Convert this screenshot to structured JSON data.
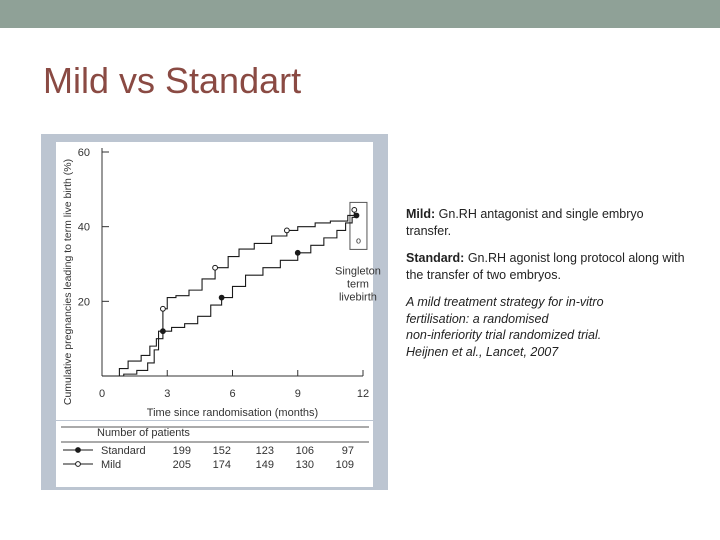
{
  "slide": {
    "title": "Mild vs Standart"
  },
  "caption": {
    "mild_label": "Mild:",
    "mild_text": " Gn.RH antagonist and single embryo transfer.",
    "standard_label": "Standard:",
    "standard_text": " Gn.RH agonist long protocol along with the transfer of two embryos.",
    "ref_lines": [
      "A mild treatment strategy for in-vitro",
      "fertilisation: a randomised",
      "non-inferiority trial randomized trial.",
      "Heijnen et al., Lancet, 2007"
    ]
  },
  "colors": {
    "topbar": "#8fa197",
    "title": "#8a4a43",
    "figure_bg": "#bcc5d1",
    "plot_bg": "#ffffff",
    "line": "#1a1a1a"
  },
  "chart_data": {
    "type": "line",
    "xlabel": "Time since randomisation   (months)",
    "ylabel": "Cumulative pregnancies leading to term live birth (%)",
    "xlim": [
      0,
      12
    ],
    "ylim": [
      0,
      60
    ],
    "x_ticks": [
      "0",
      "3",
      "6",
      "9",
      "12"
    ],
    "y_ticks": [
      "20",
      "40",
      "60"
    ],
    "grid": false,
    "annotation": [
      "Singleton",
      "term",
      "livebirth"
    ],
    "annotation_marker": "o",
    "series": [
      {
        "name": "Mild",
        "marker": "open-circle",
        "points": [
          [
            0,
            0
          ],
          [
            1.0,
            0.5
          ],
          [
            1.6,
            1.5
          ],
          [
            2.1,
            3.5
          ],
          [
            2.4,
            7
          ],
          [
            2.6,
            12
          ],
          [
            2.8,
            18
          ],
          [
            3.0,
            21
          ],
          [
            3.4,
            21.5
          ],
          [
            4.0,
            23
          ],
          [
            4.6,
            26
          ],
          [
            5.2,
            29
          ],
          [
            5.8,
            32
          ],
          [
            6.3,
            34
          ],
          [
            7.0,
            35.5
          ],
          [
            7.8,
            37.5
          ],
          [
            8.5,
            39
          ],
          [
            9.0,
            40
          ],
          [
            9.8,
            41
          ],
          [
            10.5,
            41.5
          ],
          [
            11.0,
            41.5
          ],
          [
            11.3,
            43
          ],
          [
            11.6,
            44.5
          ]
        ]
      },
      {
        "name": "Standard",
        "marker": "filled-circle",
        "points": [
          [
            0,
            0
          ],
          [
            0.8,
            2
          ],
          [
            1.2,
            4
          ],
          [
            1.8,
            5.5
          ],
          [
            2.2,
            8
          ],
          [
            2.5,
            10
          ],
          [
            2.8,
            12
          ],
          [
            3.2,
            13
          ],
          [
            3.8,
            14
          ],
          [
            4.4,
            16
          ],
          [
            5.0,
            19
          ],
          [
            5.5,
            21
          ],
          [
            6.0,
            24
          ],
          [
            6.6,
            27
          ],
          [
            7.4,
            29
          ],
          [
            8.2,
            31
          ],
          [
            9.0,
            33
          ],
          [
            9.6,
            35
          ],
          [
            10.2,
            37
          ],
          [
            10.8,
            39
          ],
          [
            11.2,
            41
          ],
          [
            11.5,
            42.5
          ],
          [
            11.7,
            43
          ]
        ]
      }
    ],
    "table": {
      "header": "Number of patients",
      "rows": [
        {
          "name": "Standard",
          "values": [
            "199",
            "152",
            "123",
            "106",
            "97"
          ]
        },
        {
          "name": "Mild",
          "values": [
            "205",
            "174",
            "149",
            "130",
            "109"
          ]
        }
      ]
    }
  }
}
